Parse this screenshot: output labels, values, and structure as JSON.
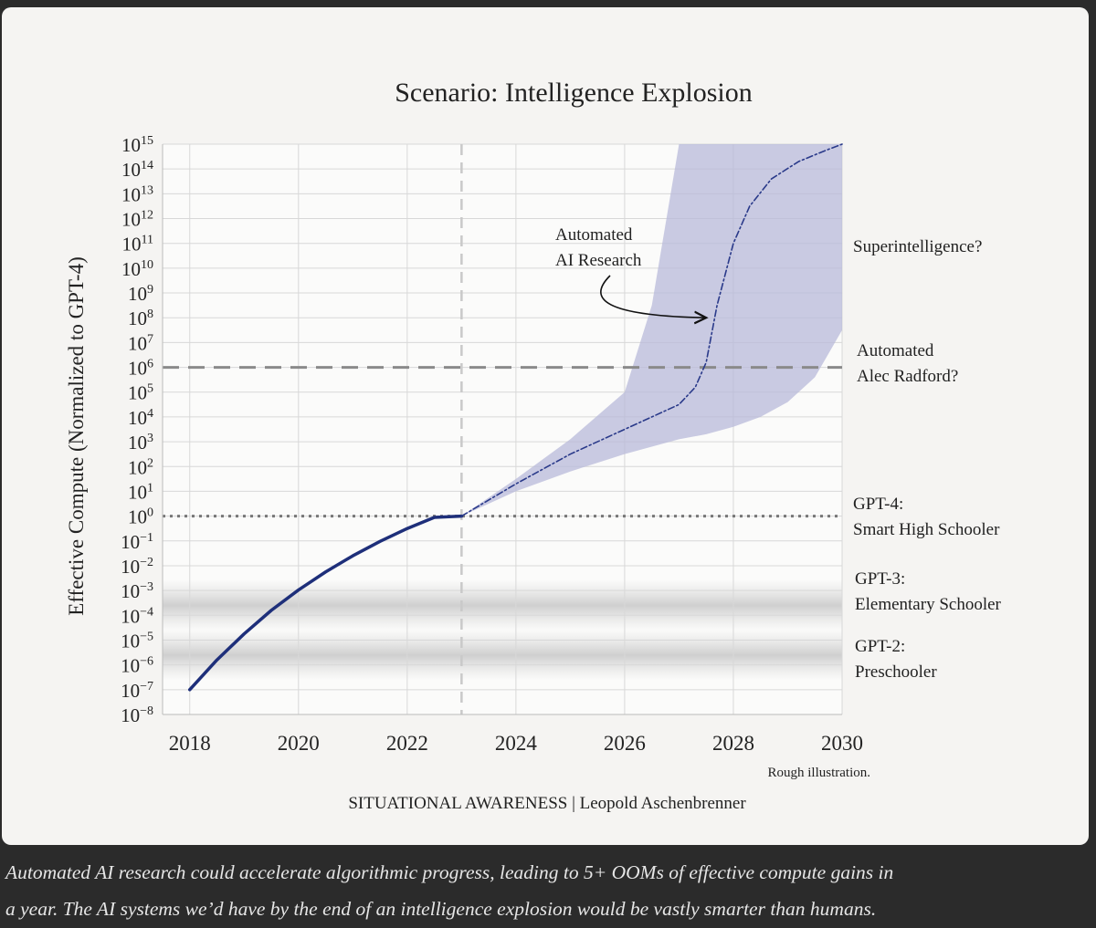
{
  "chart_data": {
    "type": "line",
    "title": "Scenario: Intelligence Explosion",
    "ylabel": "Effective Compute (Normalized to GPT-4)",
    "xlabel": "",
    "x_ticks": [
      "2018",
      "2020",
      "2022",
      "2024",
      "2026",
      "2028",
      "2030"
    ],
    "xlim": [
      2017.5,
      2030
    ],
    "y_scale": "log10",
    "ylim_exponent": [
      -8,
      15
    ],
    "y_tick_base": "10",
    "y_tick_exponents": [
      "15",
      "14",
      "13",
      "12",
      "11",
      "10",
      "9",
      "8",
      "7",
      "6",
      "5",
      "4",
      "3",
      "2",
      "1",
      "0",
      "-1",
      "-2",
      "-3",
      "-4",
      "-5",
      "-6",
      "-7",
      "-8"
    ],
    "grid": true,
    "vertical_marker_x": 2023,
    "series": [
      {
        "style": "solid",
        "color": "#1e2f7a",
        "x": [
          2018,
          2018.5,
          2019,
          2019.5,
          2020,
          2020.5,
          2021,
          2021.5,
          2022,
          2022.5,
          2023
        ],
        "log10_y": [
          -7,
          -5.8,
          -4.75,
          -3.8,
          -2.98,
          -2.25,
          -1.6,
          -1.02,
          -0.5,
          -0.05,
          0
        ]
      },
      {
        "style": "dash-dot",
        "color": "#2a3a8a",
        "x": [
          2023,
          2024,
          2025,
          2026,
          2026.5,
          2027,
          2027.3,
          2027.5,
          2027.7,
          2028,
          2028.3,
          2028.7,
          2029.2,
          2029.7,
          2030
        ],
        "log10_y": [
          0,
          1.3,
          2.5,
          3.5,
          4.0,
          4.5,
          5.2,
          6.2,
          8.5,
          11.0,
          12.5,
          13.6,
          14.3,
          14.75,
          15
        ]
      }
    ],
    "band": {
      "color": "#b8b9da",
      "x": [
        2023,
        2024,
        2025,
        2026,
        2026.5,
        2027,
        2027.5,
        2028,
        2028.5,
        2029,
        2029.5,
        2030
      ],
      "upper_log10": [
        0,
        1.5,
        3.1,
        5.0,
        8.5,
        15.5,
        15.5,
        15.5,
        15.5,
        15.5,
        15.5,
        15.5
      ],
      "lower_log10": [
        0,
        1.0,
        1.8,
        2.5,
        2.8,
        3.1,
        3.3,
        3.6,
        4.0,
        4.6,
        5.6,
        7.5
      ]
    },
    "reference_lines": [
      {
        "log10_y": 6,
        "style": "dashed",
        "label_lines": [
          "Automated",
          "Alec Radford?"
        ]
      },
      {
        "log10_y": 0,
        "style": "dotted",
        "label_lines": [
          "GPT-4:",
          "Smart High Schooler"
        ]
      }
    ],
    "shaded_bands": [
      {
        "log10_y": -3.6,
        "label_lines": [
          "GPT-3:",
          "Elementary Schooler"
        ]
      },
      {
        "log10_y": -5.6,
        "label_lines": [
          "GPT-2:",
          "Preschooler"
        ]
      }
    ],
    "annotations": [
      {
        "label_lines": [
          "Superintelligence?"
        ],
        "log10_y": 11
      },
      {
        "label_lines": [
          "Automated",
          "AI Research"
        ],
        "arrow_to_x": 2027.6,
        "arrow_to_log10_y": 8
      }
    ],
    "note": "Rough illustration.",
    "footer": "SITUATIONAL AWARENESS | Leopold Aschenbrenner"
  },
  "caption": {
    "line1": "Automated AI research could accelerate algorithmic progress, leading to 5+ OOMs of effective compute gains in",
    "line2": "a year. The AI systems we’d have by the end of an intelligence explosion would be vastly smarter than humans."
  }
}
